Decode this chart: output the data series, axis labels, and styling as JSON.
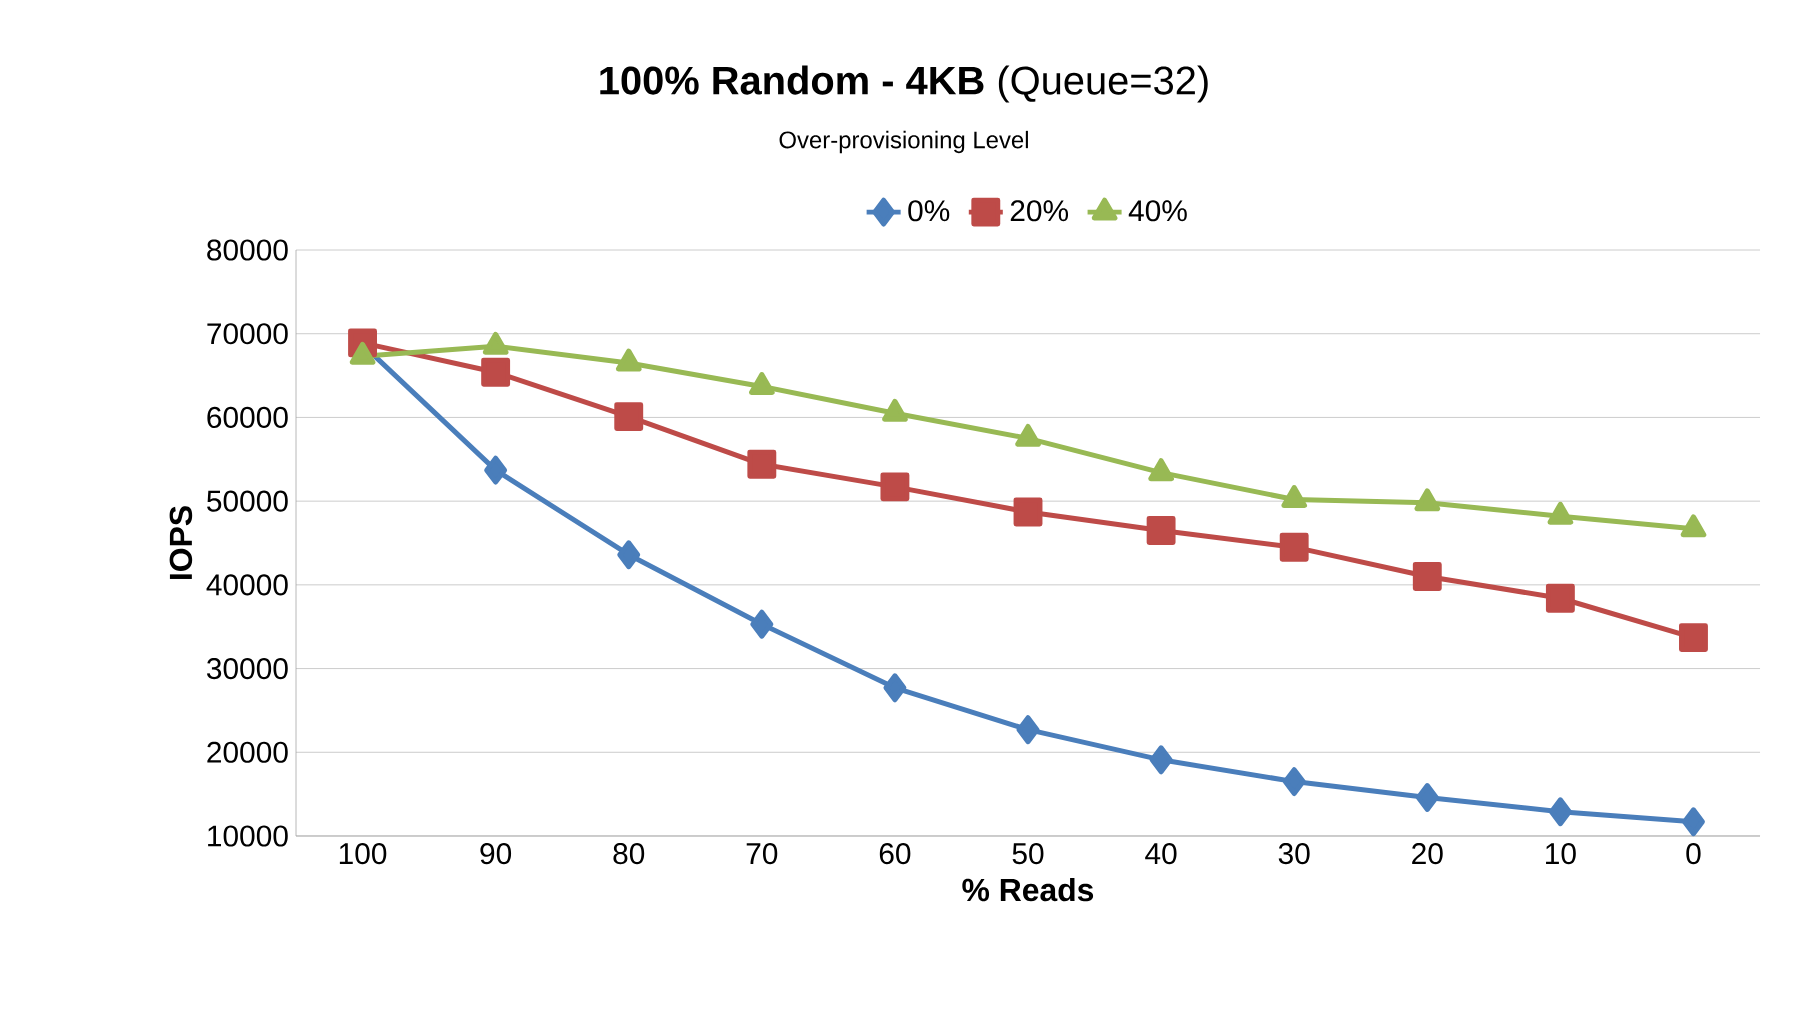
{
  "chart_data": {
    "type": "line",
    "title": "**100% Random - 4KB** (Queue=32)",
    "legend_title": "Over-provisioning Level",
    "xlabel": "% Reads",
    "ylabel": "IOPS",
    "categories": [
      "100",
      "90",
      "80",
      "70",
      "60",
      "50",
      "40",
      "30",
      "20",
      "10",
      "0"
    ],
    "series": [
      {
        "name": "0%",
        "color": "#4a7ebb",
        "marker": "diamond",
        "values": [
          68700,
          53700,
          43600,
          35300,
          27700,
          22700,
          19100,
          16500,
          14600,
          12900,
          11700
        ]
      },
      {
        "name": "20%",
        "color": "#be4b48",
        "marker": "square",
        "values": [
          68900,
          65400,
          60100,
          54400,
          51700,
          48700,
          46500,
          44500,
          41000,
          38400,
          33700
        ]
      },
      {
        "name": "40%",
        "color": "#98b954",
        "marker": "triangle",
        "values": [
          67300,
          68500,
          66500,
          63700,
          60500,
          57500,
          53400,
          50200,
          49800,
          48200,
          46700
        ]
      }
    ],
    "ylim": [
      10000,
      80000
    ],
    "yticks": [
      10000,
      20000,
      30000,
      40000,
      50000,
      60000,
      70000,
      80000
    ],
    "grid": "y",
    "legend": "top",
    "line_style": "solid"
  }
}
